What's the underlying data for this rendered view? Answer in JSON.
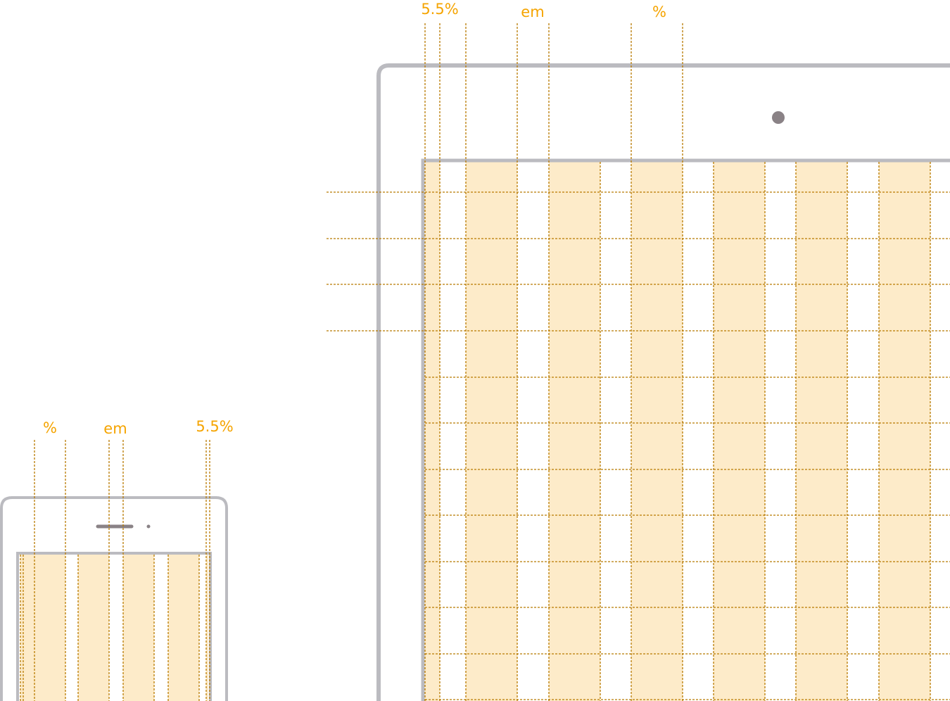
{
  "labels": {
    "tablet": {
      "left": "5.5%",
      "middle": "em",
      "right": "%"
    },
    "phone": {
      "left": "%",
      "middle": "em",
      "right": "5.5%"
    }
  },
  "colors": {
    "device_outline": "#bbbbc0",
    "guide_line": "#b87a00",
    "column_fill": "#fdebc9",
    "label_text": "#f5a400",
    "camera": "#8a8286"
  },
  "icons": {
    "tablet_camera": "camera-icon",
    "phone_speaker": "speaker-icon",
    "phone_camera": "camera-icon"
  }
}
